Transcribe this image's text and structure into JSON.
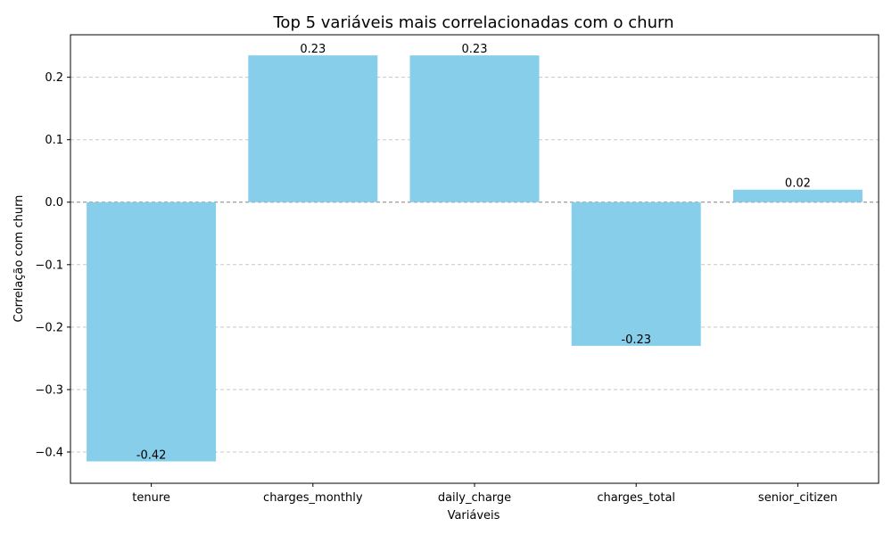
{
  "chart_data": {
    "type": "bar",
    "title": "Top 5 variáveis mais correlacionadas com o churn",
    "xlabel": "Variáveis",
    "ylabel": "Correlação com churn",
    "categories": [
      "tenure",
      "charges_monthly",
      "daily_charge",
      "charges_total",
      "senior_citizen"
    ],
    "values": [
      -0.415,
      0.235,
      0.235,
      -0.23,
      0.02
    ],
    "data_labels": [
      "-0.42",
      "0.23",
      "0.23",
      "-0.23",
      "0.02"
    ],
    "yticks": [
      -0.4,
      -0.3,
      -0.2,
      -0.1,
      0.0,
      0.1,
      0.2
    ],
    "ytick_labels": [
      "−0.4",
      "−0.3",
      "−0.2",
      "−0.1",
      "0.0",
      "0.1",
      "0.2"
    ],
    "ylim": [
      -0.45,
      0.268
    ],
    "grid": "y-dashed",
    "bar_color": "#87ceeb",
    "grid_color": "#c8c8c8",
    "zero_line_color": "#808080"
  }
}
